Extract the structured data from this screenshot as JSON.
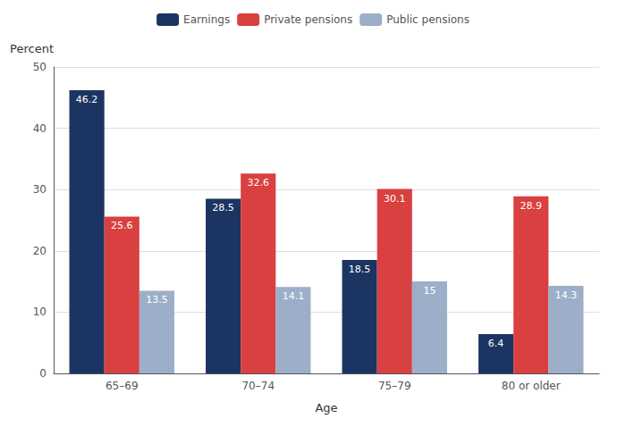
{
  "chart_data": {
    "type": "bar",
    "categories": [
      "65–69",
      "70–74",
      "75–79",
      "80 or older"
    ],
    "series": [
      {
        "name": "Earnings",
        "color": "#1c3461",
        "values": [
          46.2,
          28.5,
          18.5,
          6.4
        ]
      },
      {
        "name": "Private pensions",
        "color": "#d94040",
        "values": [
          25.6,
          32.6,
          30.1,
          28.9
        ]
      },
      {
        "name": "Public pensions",
        "color": "#9daec8",
        "values": [
          13.5,
          14.1,
          15.0,
          14.3
        ]
      }
    ],
    "xlabel": "Age",
    "ylabel": "Percent",
    "ylim": [
      0,
      50
    ],
    "yticks": [
      0,
      10,
      20,
      30,
      40,
      50
    ],
    "grid": true,
    "legend": "top",
    "data_labels": true
  }
}
